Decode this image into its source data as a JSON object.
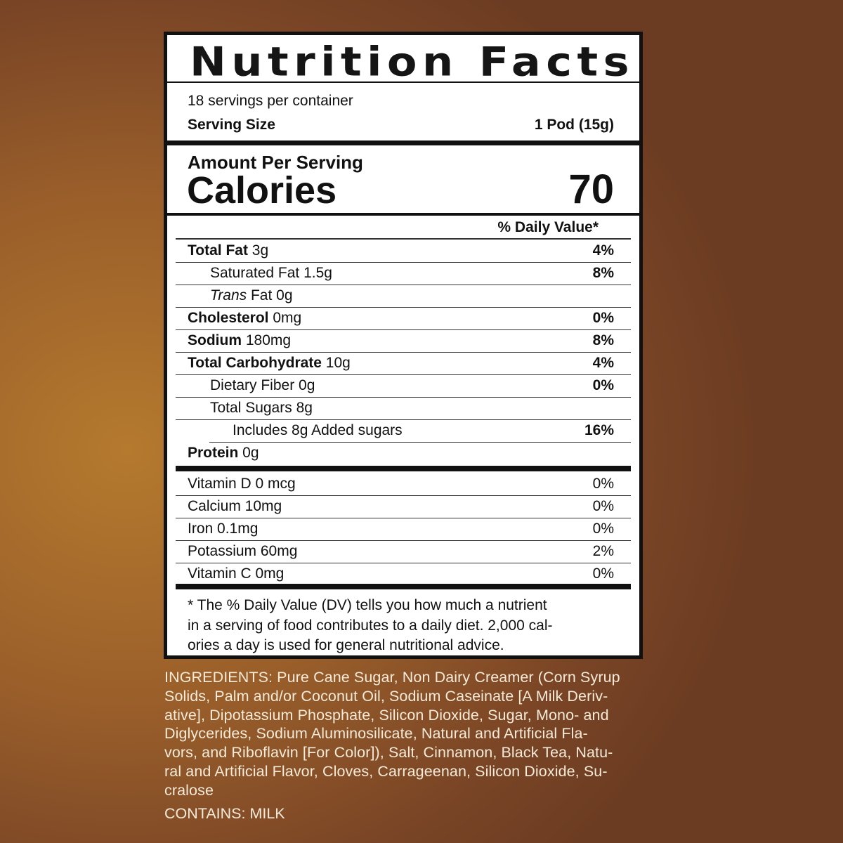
{
  "label": {
    "title": "Nutrition Facts",
    "servings_per_container": "18 servings per container",
    "serving_size_label": "Serving Size",
    "serving_size_value": "1 Pod (15g)",
    "amount_per_serving": "Amount Per Serving",
    "calories_label": "Calories",
    "calories_value": "70",
    "daily_value_header": "% Daily Value*",
    "nutrients": [
      {
        "name": "Total Fat",
        "amount": "3g",
        "dv": "4%",
        "bold": true,
        "indent": 0
      },
      {
        "name": "Saturated Fat",
        "amount": "1.5g",
        "dv": "8%",
        "bold": false,
        "indent": 1
      },
      {
        "name": "Trans",
        "name_suffix": "Fat",
        "amount": "0g",
        "dv": "",
        "bold": false,
        "indent": 1,
        "italic": true
      },
      {
        "name": "Cholesterol",
        "amount": "0mg",
        "dv": "0%",
        "bold": true,
        "indent": 0
      },
      {
        "name": "Sodium",
        "amount": "180mg",
        "dv": "8%",
        "bold": true,
        "indent": 0
      },
      {
        "name": "Total Carbohydrate",
        "amount": "10g",
        "dv": "4%",
        "bold": true,
        "indent": 0
      },
      {
        "name": "Dietary Fiber",
        "amount": "0g",
        "dv": "0%",
        "bold": false,
        "indent": 1
      },
      {
        "name": "Total Sugars",
        "amount": "8g",
        "dv": "",
        "bold": false,
        "indent": 1
      },
      {
        "name": "Includes 8g Added sugars",
        "amount": "",
        "dv": "16%",
        "bold": false,
        "indent": 2
      },
      {
        "name": "Protein",
        "amount": "0g",
        "dv": "",
        "bold": true,
        "indent": 0
      }
    ],
    "vitamins": [
      {
        "name": "Vitamin D 0 mcg",
        "dv": "0%"
      },
      {
        "name": "Calcium 10mg",
        "dv": "0%"
      },
      {
        "name": "Iron 0.1mg",
        "dv": "0%"
      },
      {
        "name": "Potassium 60mg",
        "dv": "2%"
      },
      {
        "name": "Vitamin C 0mg",
        "dv": "0%"
      }
    ],
    "footnote_lines": [
      "* The % Daily Value (DV) tells you how much a nutrient",
      "in a serving of food contributes to a daily diet. 2,000 cal-",
      "ories a day is used for general nutritional advice."
    ]
  },
  "ingredients_lines": [
    "INGREDIENTS: Pure Cane Sugar, Non Dairy Creamer (Corn Syrup",
    "Solids, Palm and/or Coconut Oil, Sodium Caseinate [A Milk Deriv-",
    "ative], Dipotassium Phosphate, Silicon Dioxide, Sugar, Mono- and",
    "Diglycerides, Sodium Aluminosilicate, Natural and Artificial Fla-",
    "vors, and Riboflavin [For Color]), Salt, Cinnamon, Black Tea, Natu-",
    "ral and Artificial Flavor, Cloves, Carrageenan, Silicon Dioxide, Su-",
    "cralose"
  ],
  "contains": "CONTAINS: MILK",
  "colors": {
    "background": "#9a5f2a",
    "ingredients_text": "#f6ead8",
    "label_ink": "#111111"
  }
}
